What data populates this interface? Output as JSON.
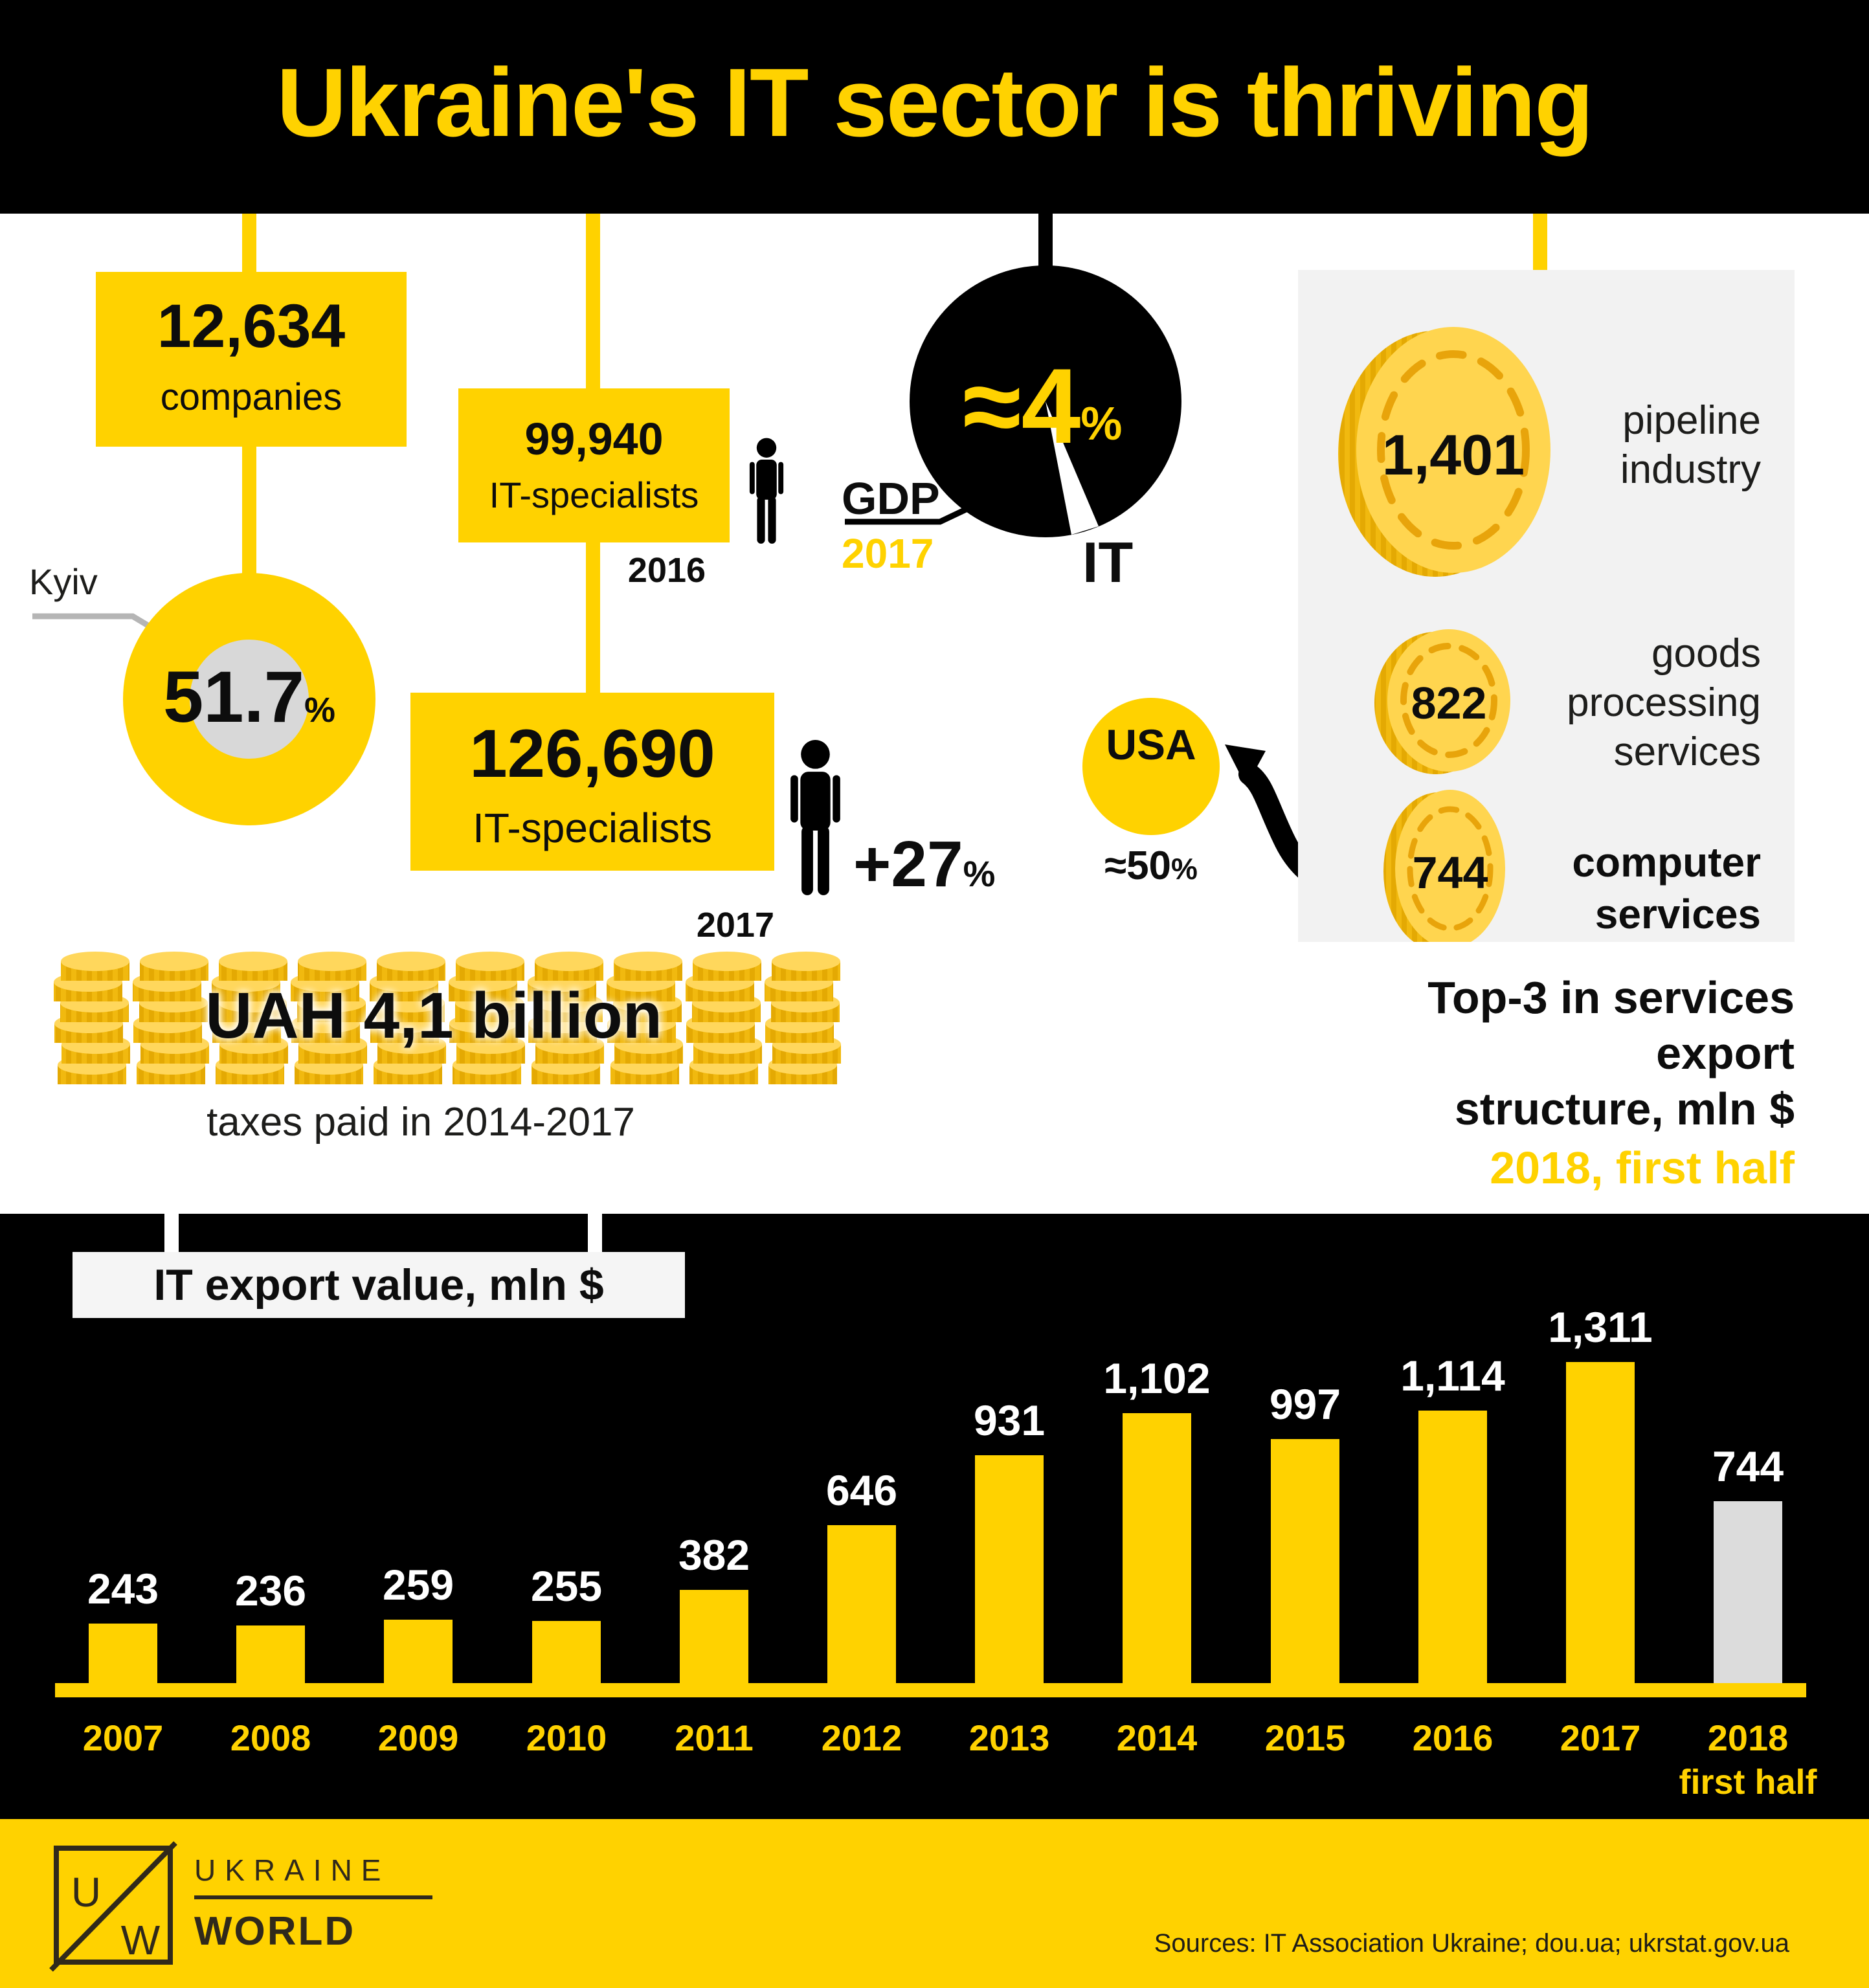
{
  "title": "Ukraine's IT sector is thriving",
  "colors": {
    "accent_yellow": "#FFD200",
    "black": "#000000",
    "panel_grey": "#F2F2F2",
    "donut_inner_grey": "#D8D8D8",
    "grey_bar": "#DCDCDC",
    "coin_face": "#FFD54F",
    "coin_side": "#EFB50C",
    "logo_dark": "#30291B",
    "white": "#FFFFFF"
  },
  "companies": {
    "value": "12,634",
    "label": "companies"
  },
  "kyiv": {
    "callout": "Kyiv",
    "share": "51.7",
    "percent_sign": "%"
  },
  "specialists_2016": {
    "value": "99,940",
    "label": "IT-specialists",
    "year": "2016"
  },
  "specialists_2017": {
    "value": "126,690",
    "label": "IT-specialists",
    "year": "2017",
    "growth": "+27",
    "percent_sign": "%"
  },
  "gdp_pie": {
    "share": "≈4",
    "percent_sign": "%",
    "gdp_label": "GDP",
    "gdp_year": "2017",
    "slice_label": "IT"
  },
  "usa": {
    "country": "USA",
    "share": "≈50",
    "percent_sign": "%"
  },
  "export_panel": {
    "coins": [
      {
        "value": "1,401",
        "label_lines": [
          "pipeline",
          "industry"
        ],
        "bold": false
      },
      {
        "value": "822",
        "label_lines": [
          "goods",
          "processing",
          "services"
        ],
        "bold": false
      },
      {
        "value": "744",
        "label_lines": [
          "computer",
          "services"
        ],
        "bold": true
      }
    ],
    "note_line1": "Top-3 in services export",
    "note_line2": "structure, mln $",
    "note_highlight": "2018, first half"
  },
  "taxes": {
    "headline": "UAH 4,1 billion",
    "caption": "taxes paid in 2014-2017",
    "stack_count": 10,
    "coins_per_stack": 6
  },
  "chart_data": {
    "type": "bar",
    "title": "IT export value, mln $",
    "categories": [
      "2007",
      "2008",
      "2009",
      "2010",
      "2011",
      "2012",
      "2013",
      "2014",
      "2015",
      "2016",
      "2017",
      "2018"
    ],
    "category_note": {
      "2018": "first half"
    },
    "values": [
      243,
      236,
      259,
      255,
      382,
      646,
      931,
      1102,
      997,
      1114,
      1311,
      744
    ],
    "value_labels": [
      "243",
      "236",
      "259",
      "255",
      "382",
      "646",
      "931",
      "1,102",
      "997",
      "1,114",
      "1,311",
      "744"
    ],
    "bar_colors": [
      "#FFD200",
      "#FFD200",
      "#FFD200",
      "#FFD200",
      "#FFD200",
      "#FFD200",
      "#FFD200",
      "#FFD200",
      "#FFD200",
      "#FFD200",
      "#FFD200",
      "#DCDCDC"
    ],
    "xlabel": "",
    "ylabel": "",
    "ylim": [
      0,
      1400
    ],
    "grid": false,
    "legend": false
  },
  "footer": {
    "logo_letters": [
      "U",
      "W"
    ],
    "brand": [
      "UKRAINE",
      "WORLD"
    ],
    "sources": "Sources: IT Association Ukraine; dou.ua; ukrstat.gov.ua"
  }
}
